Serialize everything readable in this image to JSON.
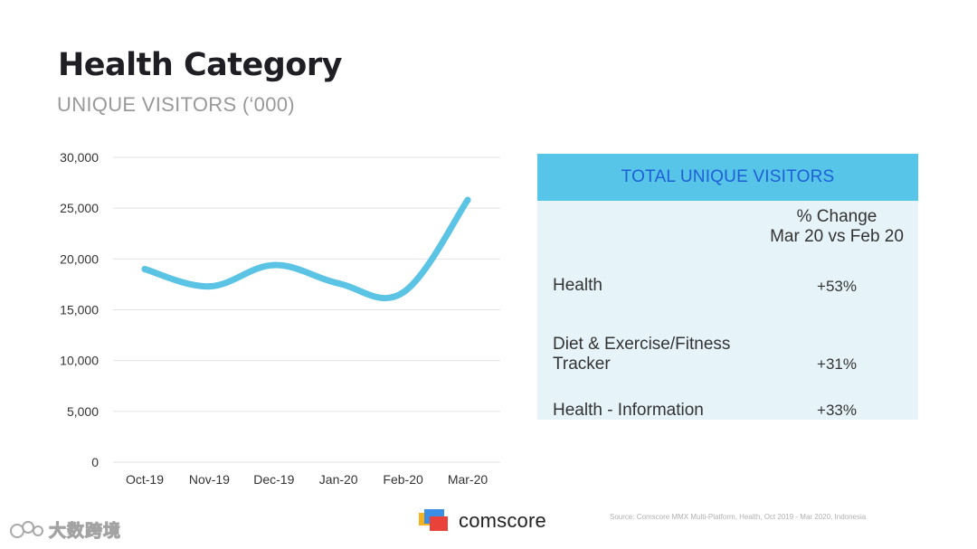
{
  "page": {
    "title": "Health Category",
    "subtitle": "UNIQUE VISITORS (‘000)"
  },
  "chart_data": {
    "type": "line",
    "title": "Health Category",
    "subtitle": "UNIQUE VISITORS (‘000)",
    "xlabel": "",
    "ylabel": "",
    "categories": [
      "Oct-19",
      "Nov-19",
      "Dec-19",
      "Jan-20",
      "Feb-20",
      "Mar-20"
    ],
    "series": [
      {
        "name": "Health",
        "values": [
          19000,
          17300,
          19400,
          17600,
          16700,
          25800
        ]
      }
    ],
    "y_ticks": [
      0,
      5000,
      10000,
      15000,
      20000,
      25000,
      30000
    ],
    "y_tick_labels": [
      "0",
      "5,000",
      "10,000",
      "15,000",
      "20,000",
      "25,000",
      "30,000"
    ],
    "ylim": [
      0,
      30000
    ],
    "grid": true,
    "legend": "none",
    "line_color": "#5bc3e3"
  },
  "table": {
    "header": "TOTAL UNIQUE VISITORS",
    "column_header_line1": "% Change",
    "column_header_line2": "Mar 20 vs Feb 20",
    "rows": [
      {
        "label_line1": "Health",
        "label_line2": "",
        "value": "+53%"
      },
      {
        "label_line1": "Diet & Exercise/Fitness",
        "label_line2": "Tracker",
        "value": "+31%"
      },
      {
        "label_line1": "Health - Information",
        "label_line2": "",
        "value": "+33%"
      }
    ],
    "header_color": "#56c5e8",
    "header_text_color": "#1f5fd6",
    "body_color": "#e6f4fa"
  },
  "footer": {
    "brand": "comscore",
    "source": "Source: Comscore MMX Multi-Platform, Health, Oct 2019 - Mar 2020, Indonesia",
    "watermark": "大数跨境"
  }
}
